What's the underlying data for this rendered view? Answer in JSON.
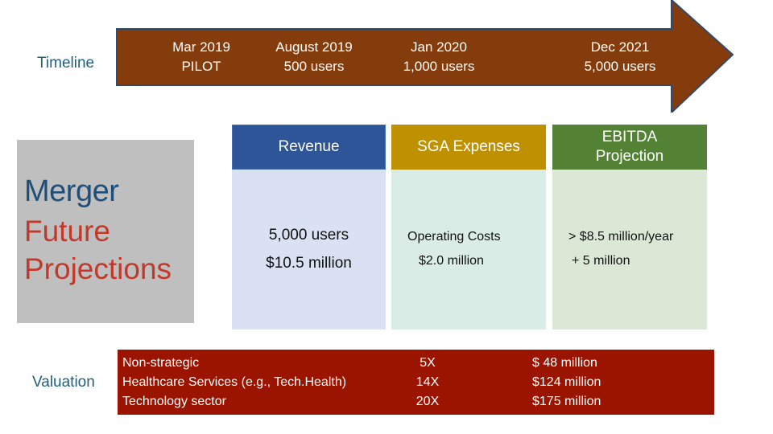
{
  "timeline": {
    "label": "Timeline",
    "milestones": [
      {
        "date": "Mar 2019",
        "detail": "PILOT"
      },
      {
        "date": "August 2019",
        "detail": "500 users"
      },
      {
        "date": "Jan 2020",
        "detail": "1,000 users"
      },
      {
        "date": "Dec 2021",
        "detail": "5,000 users"
      }
    ],
    "arrow_color": "#843c0c"
  },
  "merger": {
    "title": "Merger",
    "subtitle_line1": "Future",
    "subtitle_line2": "Projections"
  },
  "columns": {
    "revenue": {
      "header": "Revenue",
      "line1": "5,000 users",
      "line2": "$10.5 million"
    },
    "sga": {
      "header": "SGA Expenses",
      "line1": "Operating Costs",
      "line2": "$2.0 million"
    },
    "ebitda": {
      "header_line1": "EBITDA",
      "header_line2": "Projection",
      "line1": "> $8.5 million/year",
      "line2": "+ 5 million"
    }
  },
  "valuation": {
    "label": "Valuation",
    "sectors": [
      "Non-strategic",
      "Healthcare Services (e.g., Tech.Health)",
      "Technology sector"
    ],
    "multiples": [
      "5X",
      "14X",
      "20X"
    ],
    "amounts": [
      "$ 48 million",
      "$124 million",
      "$175 million"
    ]
  }
}
